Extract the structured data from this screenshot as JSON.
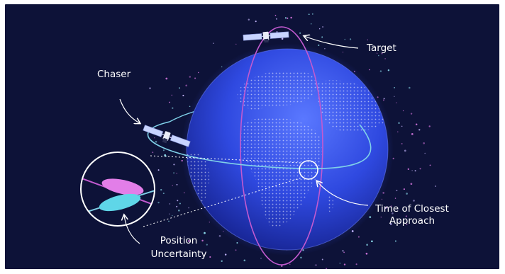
{
  "colors": {
    "background": "#0d1238",
    "globe": "#2f49e0",
    "chaser_orbit": "#7fd0e8",
    "target_orbit": "#c25ad0",
    "chaser_uncertainty": "#5fd6e8",
    "target_uncertainty": "#e27ee8"
  },
  "labels": {
    "target": "Target",
    "chaser": "Chaser",
    "tca_line1": "Time of Closest",
    "tca_line2": "Approach",
    "position_line1": "Position",
    "position_line2": "Uncertainty"
  },
  "icons": {
    "target": "satellite-icon",
    "chaser": "satellite-icon"
  }
}
